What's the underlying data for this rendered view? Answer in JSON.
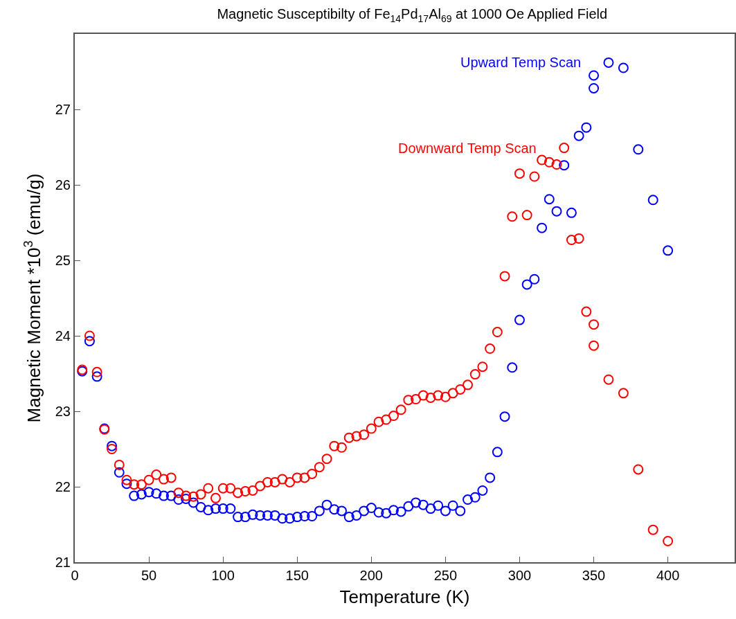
{
  "chart_data": {
    "type": "scatter",
    "title": "Magnetic Susceptibilty of Fe$_{14}$Pd$_{17}$Al$_{69}$ at 1000 Oe Applied Field",
    "xlabel": "Temperature (K)",
    "ylabel": "Magnetic Moment *10$^{3}$ (emu/g)",
    "xlim": [
      0,
      445
    ],
    "ylim": [
      21,
      28
    ],
    "xticks": [
      0,
      50,
      100,
      150,
      200,
      250,
      300,
      350,
      400
    ],
    "yticks": [
      21,
      22,
      23,
      24,
      25,
      26,
      27
    ],
    "grid": false,
    "marker": "circle",
    "legend": false,
    "series": [
      {
        "name": "Upward Temp Scan",
        "color": "#0000ff",
        "x": [
          5,
          10,
          15,
          20,
          25,
          30,
          35,
          40,
          45,
          50,
          55,
          60,
          65,
          70,
          75,
          80,
          85,
          90,
          95,
          100,
          105,
          110,
          115,
          120,
          125,
          130,
          135,
          140,
          145,
          150,
          155,
          160,
          165,
          170,
          175,
          180,
          185,
          190,
          195,
          200,
          205,
          210,
          215,
          220,
          225,
          230,
          235,
          240,
          245,
          250,
          255,
          260,
          265,
          270,
          275,
          280,
          285,
          290,
          295,
          300,
          305,
          310,
          315,
          320,
          325,
          330,
          335,
          340,
          345,
          350,
          350,
          360,
          370,
          380,
          390,
          400
        ],
        "values": [
          23.53,
          23.93,
          23.46,
          22.77,
          22.54,
          22.19,
          22.04,
          21.88,
          21.9,
          21.93,
          21.91,
          21.88,
          21.88,
          21.83,
          21.84,
          21.79,
          21.73,
          21.69,
          21.71,
          21.71,
          21.71,
          21.6,
          21.6,
          21.63,
          21.62,
          21.62,
          21.62,
          21.58,
          21.58,
          21.6,
          21.61,
          21.61,
          21.68,
          21.76,
          21.7,
          21.68,
          21.6,
          21.62,
          21.68,
          21.72,
          21.66,
          21.65,
          21.69,
          21.67,
          21.74,
          21.79,
          21.76,
          21.71,
          21.75,
          21.68,
          21.75,
          21.68,
          21.83,
          21.86,
          21.95,
          22.12,
          22.46,
          22.93,
          23.58,
          24.21,
          24.68,
          24.75,
          25.43,
          25.81,
          25.65,
          26.26,
          25.63,
          26.65,
          26.76,
          27.45,
          27.28,
          27.62,
          27.55,
          26.47,
          25.8,
          25.13
        ]
      },
      {
        "name": "Downward Temp Scan",
        "color": "#ff0000",
        "x": [
          5,
          10,
          15,
          20,
          25,
          30,
          35,
          40,
          45,
          50,
          55,
          60,
          65,
          70,
          75,
          80,
          85,
          90,
          95,
          100,
          105,
          110,
          115,
          120,
          125,
          130,
          135,
          140,
          145,
          150,
          155,
          160,
          165,
          170,
          175,
          180,
          185,
          190,
          195,
          200,
          205,
          210,
          215,
          220,
          225,
          230,
          235,
          240,
          245,
          250,
          255,
          260,
          265,
          270,
          275,
          280,
          285,
          290,
          295,
          300,
          305,
          310,
          315,
          320,
          325,
          330,
          335,
          340,
          345,
          350,
          350,
          360,
          370,
          380,
          390,
          400
        ],
        "values": [
          23.55,
          24.0,
          23.52,
          22.76,
          22.5,
          22.29,
          22.09,
          22.03,
          22.03,
          22.09,
          22.16,
          22.1,
          22.12,
          21.92,
          21.88,
          21.87,
          21.9,
          21.98,
          21.85,
          21.98,
          21.98,
          21.92,
          21.94,
          21.95,
          22.01,
          22.06,
          22.06,
          22.1,
          22.06,
          22.12,
          22.12,
          22.17,
          22.26,
          22.37,
          22.54,
          22.52,
          22.65,
          22.67,
          22.69,
          22.77,
          22.86,
          22.89,
          22.94,
          23.02,
          23.15,
          23.16,
          23.21,
          23.18,
          23.21,
          23.19,
          23.24,
          23.29,
          23.35,
          23.49,
          23.59,
          23.83,
          24.05,
          24.79,
          25.58,
          26.15,
          25.6,
          26.11,
          26.33,
          26.3,
          26.27,
          26.49,
          25.27,
          25.29,
          24.32,
          24.15,
          23.87,
          23.42,
          23.24,
          22.23,
          21.43,
          21.28
        ]
      }
    ]
  }
}
